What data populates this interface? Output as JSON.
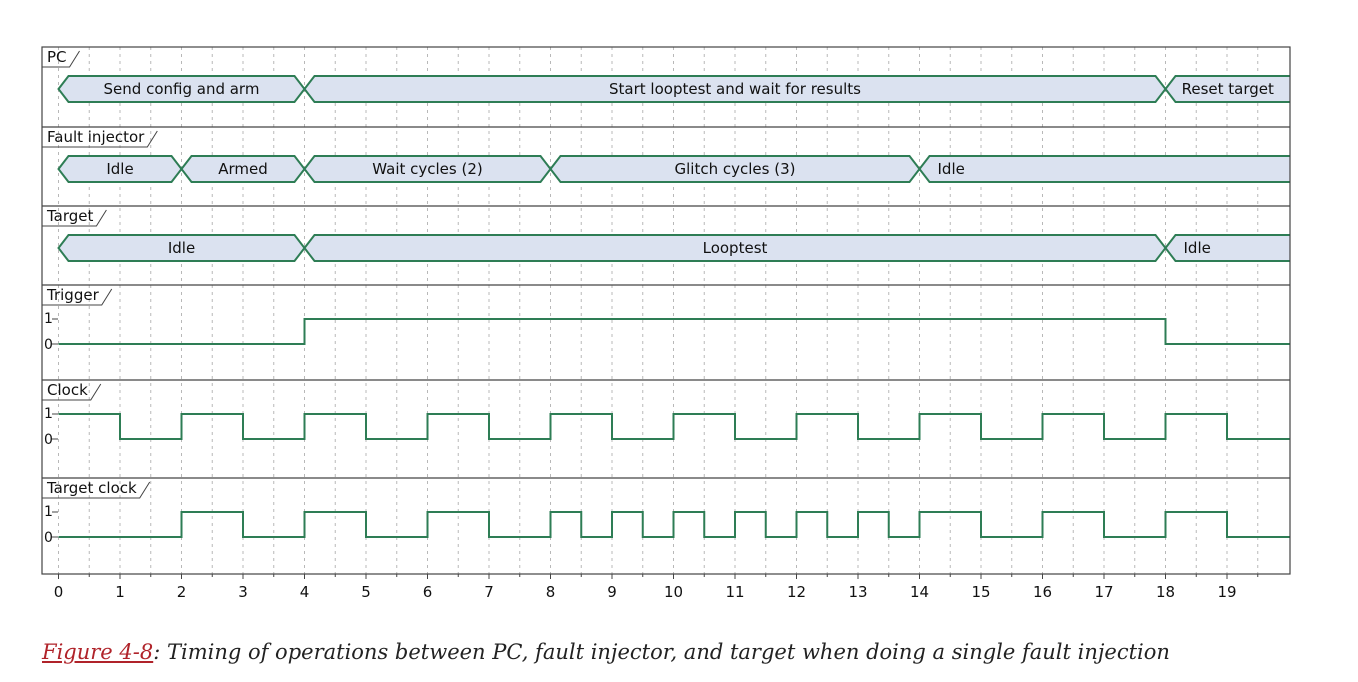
{
  "colors": {
    "wave": "#2e7d55",
    "bus_fill": "#dbe2f0",
    "grid": "#b8b8b8",
    "border": "#444444",
    "caption_link": "#b0232a"
  },
  "axis": {
    "min": 0,
    "max": 20,
    "ticks": [
      "0",
      "1",
      "2",
      "3",
      "4",
      "5",
      "6",
      "7",
      "8",
      "9",
      "10",
      "11",
      "12",
      "13",
      "14",
      "15",
      "16",
      "17",
      "18",
      "19"
    ]
  },
  "lanes": [
    {
      "id": "pc",
      "label": "PC",
      "type": "bus",
      "segments": [
        {
          "start": 0,
          "end": 4,
          "label": "Send config and arm"
        },
        {
          "start": 4,
          "end": 18,
          "label": "Start looptest and wait for results"
        },
        {
          "start": 18,
          "end": 20,
          "label": "Reset target",
          "open_end": true
        }
      ]
    },
    {
      "id": "fault-injector",
      "label": "Fault injector",
      "type": "bus",
      "segments": [
        {
          "start": 0,
          "end": 2,
          "label": "Idle"
        },
        {
          "start": 2,
          "end": 4,
          "label": "Armed"
        },
        {
          "start": 4,
          "end": 8,
          "label": "Wait cycles (2)"
        },
        {
          "start": 8,
          "end": 14,
          "label": "Glitch cycles (3)"
        },
        {
          "start": 14,
          "end": 20,
          "label": "Idle",
          "open_end": true,
          "align": "left"
        }
      ]
    },
    {
      "id": "target",
      "label": "Target",
      "type": "bus",
      "segments": [
        {
          "start": 0,
          "end": 4,
          "label": "Idle"
        },
        {
          "start": 4,
          "end": 18,
          "label": "Looptest"
        },
        {
          "start": 18,
          "end": 20,
          "label": "Idle",
          "open_end": true,
          "align": "left"
        }
      ]
    },
    {
      "id": "trigger",
      "label": "Trigger",
      "type": "digital",
      "levels": [
        "1",
        "0"
      ],
      "initial": 0,
      "transitions": [
        [
          4,
          1
        ],
        [
          18,
          0
        ]
      ]
    },
    {
      "id": "clock",
      "label": "Clock",
      "type": "digital",
      "levels": [
        "1",
        "0"
      ],
      "initial": 1,
      "transitions": [
        [
          1,
          0
        ],
        [
          2,
          1
        ],
        [
          3,
          0
        ],
        [
          4,
          1
        ],
        [
          5,
          0
        ],
        [
          6,
          1
        ],
        [
          7,
          0
        ],
        [
          8,
          1
        ],
        [
          9,
          0
        ],
        [
          10,
          1
        ],
        [
          11,
          0
        ],
        [
          12,
          1
        ],
        [
          13,
          0
        ],
        [
          14,
          1
        ],
        [
          15,
          0
        ],
        [
          16,
          1
        ],
        [
          17,
          0
        ],
        [
          18,
          1
        ],
        [
          19,
          0
        ]
      ]
    },
    {
      "id": "target-clock",
      "label": "Target clock",
      "type": "digital",
      "levels": [
        "1",
        "0"
      ],
      "initial": 0,
      "transitions": [
        [
          2,
          1
        ],
        [
          3,
          0
        ],
        [
          4,
          1
        ],
        [
          5,
          0
        ],
        [
          6,
          1
        ],
        [
          7,
          0
        ],
        [
          8,
          1
        ],
        [
          8.5,
          0
        ],
        [
          9,
          1
        ],
        [
          9.5,
          0
        ],
        [
          10,
          1
        ],
        [
          10.5,
          0
        ],
        [
          11,
          1
        ],
        [
          11.5,
          0
        ],
        [
          12,
          1
        ],
        [
          12.5,
          0
        ],
        [
          13,
          1
        ],
        [
          13.5,
          0
        ],
        [
          14,
          1
        ],
        [
          15,
          0
        ],
        [
          16,
          1
        ],
        [
          17,
          0
        ],
        [
          18,
          1
        ],
        [
          19,
          0
        ]
      ]
    }
  ],
  "caption": {
    "ref": "Figure 4-8",
    "text": ": Timing of operations between PC, fault injector, and target when doing a single fault injection"
  }
}
